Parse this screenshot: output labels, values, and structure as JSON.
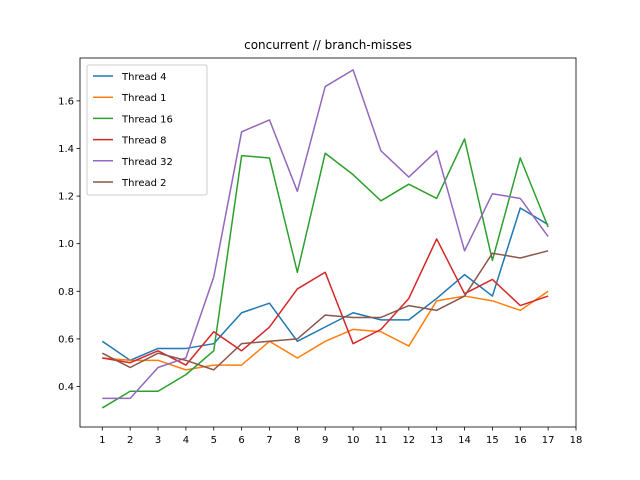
{
  "chart_data": {
    "type": "line",
    "title": "concurrent // branch-misses",
    "xlabel": "",
    "ylabel": "",
    "x": [
      1,
      2,
      3,
      4,
      5,
      6,
      7,
      8,
      9,
      10,
      11,
      12,
      13,
      14,
      15,
      16,
      17
    ],
    "xticks": [
      1,
      2,
      3,
      4,
      5,
      6,
      7,
      8,
      9,
      10,
      11,
      12,
      13,
      14,
      15,
      16,
      17,
      18
    ],
    "yticks": [
      0.4,
      0.6,
      0.8,
      1.0,
      1.2,
      1.4,
      1.6
    ],
    "ytick_labels": [
      "0.4",
      "0.6",
      "0.8",
      "1.0",
      "1.2",
      "1.4",
      "1.6"
    ],
    "xlim": [
      0.2,
      18.0
    ],
    "ylim": [
      0.23,
      1.78
    ],
    "grid": false,
    "legend_position": "upper-left",
    "series": [
      {
        "name": "Thread 4",
        "color": "#1f77b4",
        "values": [
          0.59,
          0.51,
          0.56,
          0.56,
          0.58,
          0.71,
          0.75,
          0.59,
          0.65,
          0.71,
          0.68,
          0.68,
          0.77,
          0.87,
          0.78,
          1.15,
          1.08
        ]
      },
      {
        "name": "Thread 1",
        "color": "#ff7f0e",
        "values": [
          0.52,
          0.51,
          0.51,
          0.47,
          0.49,
          0.49,
          0.59,
          0.52,
          0.59,
          0.64,
          0.63,
          0.57,
          0.76,
          0.78,
          0.76,
          0.72,
          0.8
        ]
      },
      {
        "name": "Thread 16",
        "color": "#2ca02c",
        "values": [
          0.31,
          0.38,
          0.38,
          0.45,
          0.55,
          1.37,
          1.36,
          0.88,
          1.38,
          1.29,
          1.18,
          1.25,
          1.19,
          1.44,
          0.93,
          1.36,
          1.07
        ]
      },
      {
        "name": "Thread 8",
        "color": "#d62728",
        "values": [
          0.52,
          0.5,
          0.55,
          0.49,
          0.63,
          0.55,
          0.65,
          0.81,
          0.88,
          0.58,
          0.64,
          0.77,
          1.02,
          0.79,
          0.85,
          0.74,
          0.78
        ]
      },
      {
        "name": "Thread 32",
        "color": "#9467bd",
        "values": [
          0.35,
          0.35,
          0.48,
          0.52,
          0.86,
          1.47,
          1.52,
          1.22,
          1.66,
          1.73,
          1.39,
          1.28,
          1.39,
          0.97,
          1.21,
          1.19,
          1.03
        ]
      },
      {
        "name": "Thread 2",
        "color": "#8c564b",
        "values": [
          0.54,
          0.48,
          0.54,
          0.51,
          0.47,
          0.58,
          0.59,
          0.6,
          0.7,
          0.69,
          0.69,
          0.74,
          0.72,
          0.78,
          0.96,
          0.94,
          0.97
        ]
      }
    ]
  }
}
